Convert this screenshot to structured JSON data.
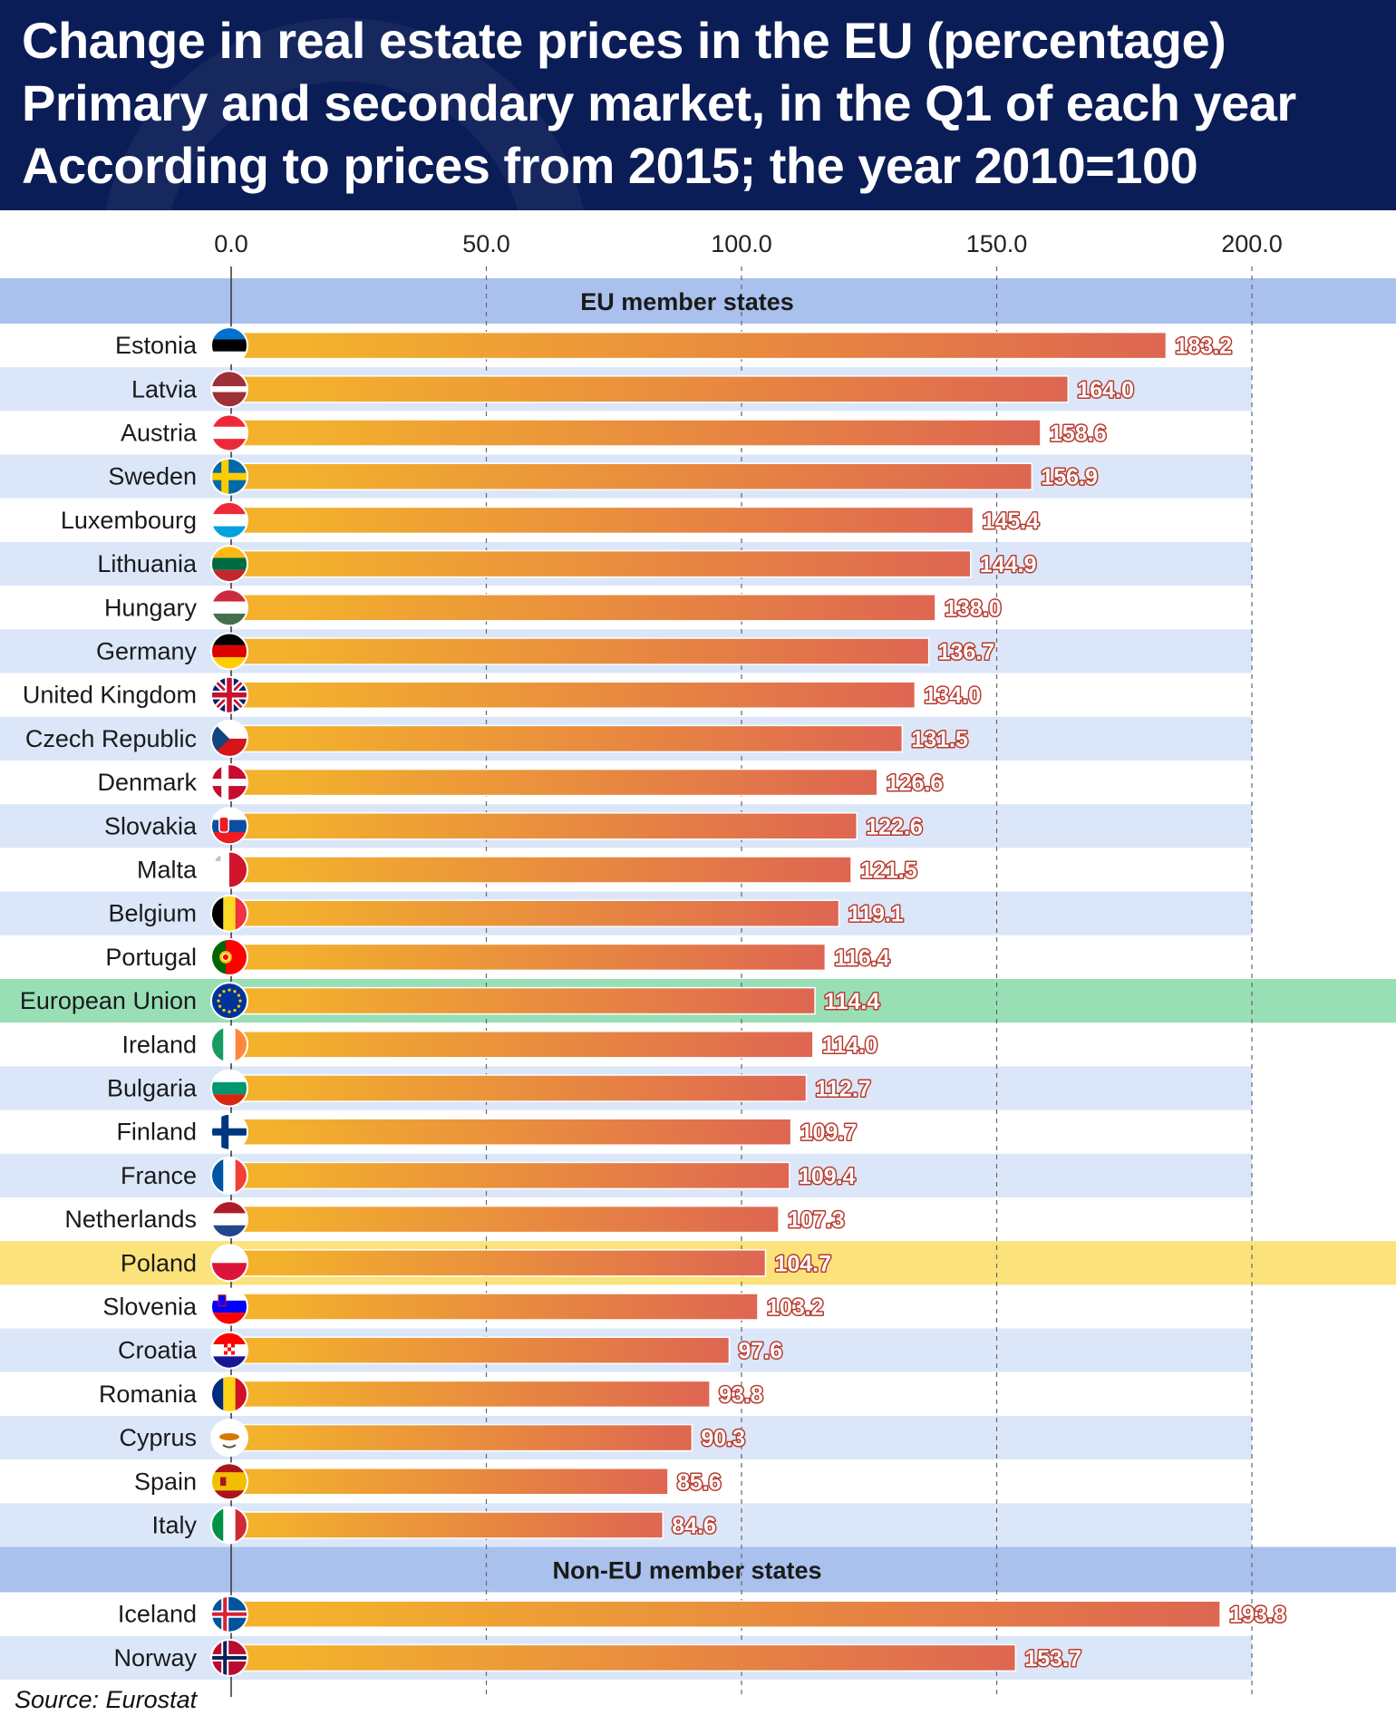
{
  "title": {
    "line1": "Change in real estate prices in the EU (percentage)",
    "line2": "Primary and secondary market, in the Q1 of each year",
    "line3": "According to prices from 2015; the year 2010=100"
  },
  "source": "Source: Eurostat",
  "colors": {
    "header_bg": "#0b1d57",
    "section_bg": "#a9c1ec",
    "stripe_bg": "#dbe6f9",
    "eu_highlight": "#98dfb5",
    "poland_highlight": "#fbe27a",
    "bar_start": "#f3b12c",
    "bar_end": "#de6652"
  },
  "chart_data": {
    "type": "bar",
    "orientation": "horizontal",
    "title": "Change in real estate prices in the EU (percentage)",
    "xlim": [
      0,
      200
    ],
    "ticks": [
      "0.0",
      "50.0",
      "100.0",
      "150.0",
      "200.0"
    ],
    "tick_values": [
      0,
      50,
      100,
      150,
      200
    ],
    "grid": true,
    "sections": [
      {
        "title": "EU member states",
        "rows": [
          {
            "name": "Estonia",
            "value": 183.2,
            "label": "183.2",
            "flag": "estonia-flag-icon"
          },
          {
            "name": "Latvia",
            "value": 164.0,
            "label": "164.0",
            "flag": "latvia-flag-icon"
          },
          {
            "name": "Austria",
            "value": 158.6,
            "label": "158.6",
            "flag": "austria-flag-icon"
          },
          {
            "name": "Sweden",
            "value": 156.9,
            "label": "156.9",
            "flag": "sweden-flag-icon"
          },
          {
            "name": "Luxembourg",
            "value": 145.4,
            "label": "145.4",
            "flag": "luxembourg-flag-icon"
          },
          {
            "name": "Lithuania",
            "value": 144.9,
            "label": "144.9",
            "flag": "lithuania-flag-icon"
          },
          {
            "name": "Hungary",
            "value": 138.0,
            "label": "138.0",
            "flag": "hungary-flag-icon"
          },
          {
            "name": "Germany",
            "value": 136.7,
            "label": "136.7",
            "flag": "germany-flag-icon"
          },
          {
            "name": "United Kingdom",
            "value": 134.0,
            "label": "134.0",
            "flag": "united-kingdom-flag-icon"
          },
          {
            "name": "Czech Republic",
            "value": 131.5,
            "label": "131.5",
            "flag": "czech-republic-flag-icon"
          },
          {
            "name": "Denmark",
            "value": 126.6,
            "label": "126.6",
            "flag": "denmark-flag-icon"
          },
          {
            "name": "Slovakia",
            "value": 122.6,
            "label": "122.6",
            "flag": "slovakia-flag-icon"
          },
          {
            "name": "Malta",
            "value": 121.5,
            "label": "121.5",
            "flag": "malta-flag-icon"
          },
          {
            "name": "Belgium",
            "value": 119.1,
            "label": "119.1",
            "flag": "belgium-flag-icon"
          },
          {
            "name": "Portugal",
            "value": 116.4,
            "label": "116.4",
            "flag": "portugal-flag-icon"
          },
          {
            "name": "European Union",
            "value": 114.4,
            "label": "114.4",
            "flag": "european-union-flag-icon",
            "highlight": "eu"
          },
          {
            "name": "Ireland",
            "value": 114.0,
            "label": "114.0",
            "flag": "ireland-flag-icon"
          },
          {
            "name": "Bulgaria",
            "value": 112.7,
            "label": "112.7",
            "flag": "bulgaria-flag-icon"
          },
          {
            "name": "Finland",
            "value": 109.7,
            "label": "109.7",
            "flag": "finland-flag-icon"
          },
          {
            "name": "France",
            "value": 109.4,
            "label": "109.4",
            "flag": "france-flag-icon"
          },
          {
            "name": "Netherlands",
            "value": 107.3,
            "label": "107.3",
            "flag": "netherlands-flag-icon"
          },
          {
            "name": "Poland",
            "value": 104.7,
            "label": "104.7",
            "flag": "poland-flag-icon",
            "highlight": "poland"
          },
          {
            "name": "Slovenia",
            "value": 103.2,
            "label": "103.2",
            "flag": "slovenia-flag-icon"
          },
          {
            "name": "Croatia",
            "value": 97.6,
            "label": "97.6",
            "flag": "croatia-flag-icon"
          },
          {
            "name": "Romania",
            "value": 93.8,
            "label": "93.8",
            "flag": "romania-flag-icon"
          },
          {
            "name": "Cyprus",
            "value": 90.3,
            "label": "90.3",
            "flag": "cyprus-flag-icon"
          },
          {
            "name": "Spain",
            "value": 85.6,
            "label": "85.6",
            "flag": "spain-flag-icon"
          },
          {
            "name": "Italy",
            "value": 84.6,
            "label": "84.6",
            "flag": "italy-flag-icon"
          }
        ]
      },
      {
        "title": "Non-EU member states",
        "rows": [
          {
            "name": "Iceland",
            "value": 193.8,
            "label": "193.8",
            "flag": "iceland-flag-icon"
          },
          {
            "name": "Norway",
            "value": 153.7,
            "label": "153.7",
            "flag": "norway-flag-icon"
          }
        ]
      }
    ]
  }
}
